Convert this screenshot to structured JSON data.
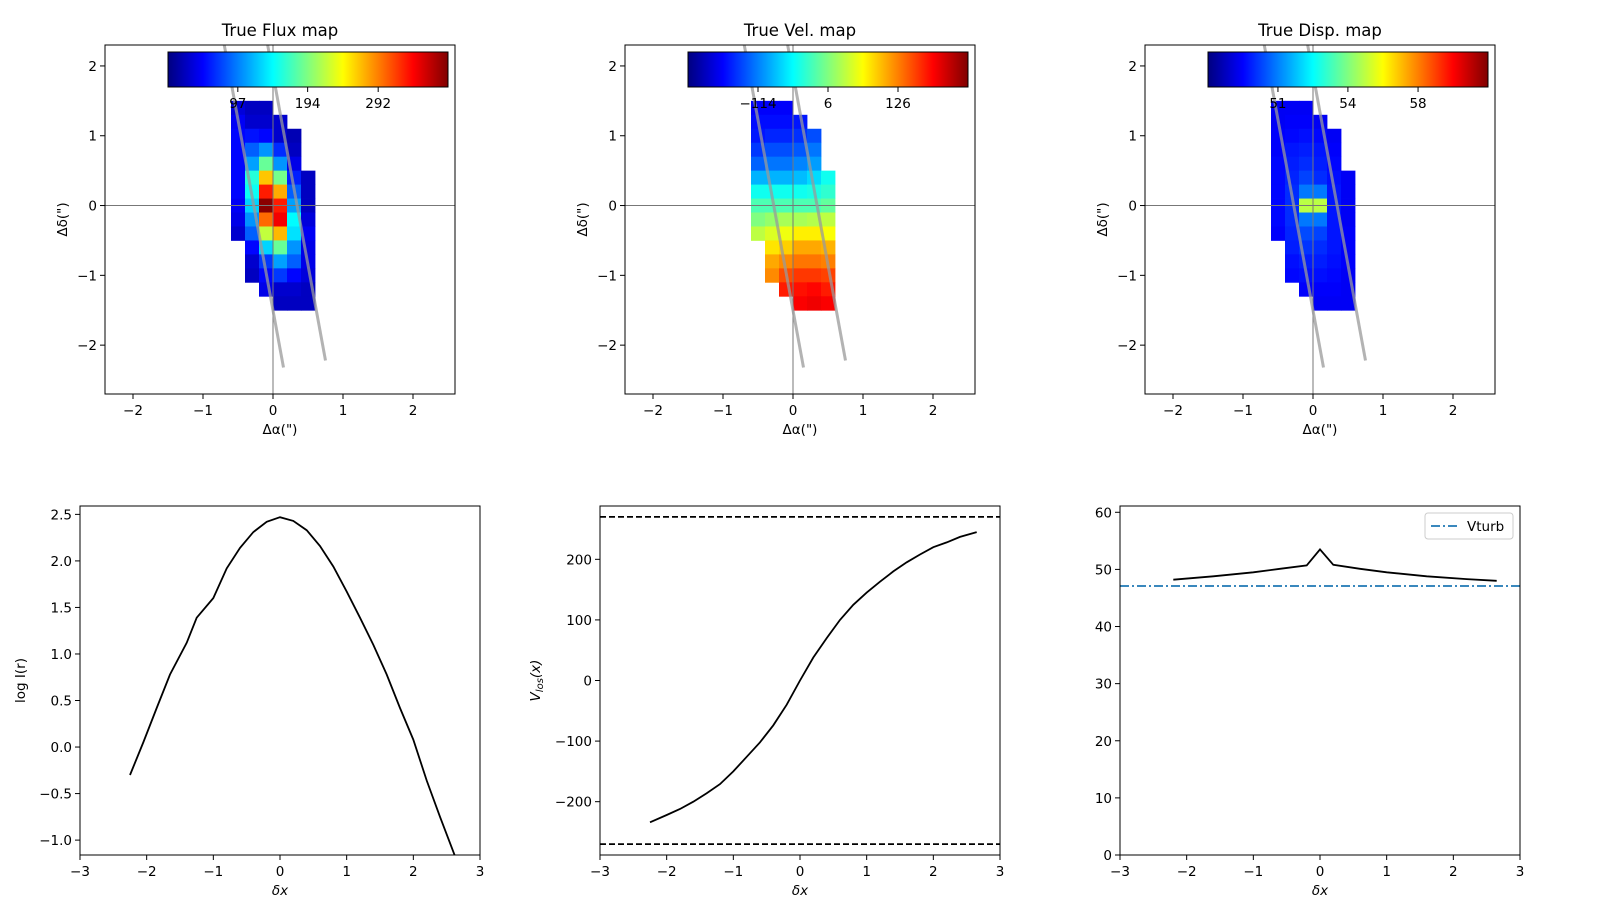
{
  "chart_data": [
    {
      "type": "heatmap",
      "title": "True Flux map",
      "xlabel": "Δα(\")",
      "ylabel": "Δδ(\")",
      "xlim": [
        -2.4,
        2.6
      ],
      "ylim": [
        -2.7,
        2.3
      ],
      "xticks": [
        -2,
        -1,
        0,
        1,
        2
      ],
      "xtick_labels": [
        "−2",
        "−1",
        "0",
        "1",
        "2"
      ],
      "yticks": [
        -2,
        -1,
        0,
        1,
        2
      ],
      "ytick_labels": [
        "−2",
        "−1",
        "0",
        "1",
        "2"
      ],
      "colormap": "jet",
      "clim": [
        0,
        389
      ],
      "colorbar_ticks": [
        97,
        194,
        292
      ],
      "colorbar_tick_labels": [
        "97",
        "194",
        "292"
      ],
      "cell_size": 0.2,
      "x_centers": [
        -0.5,
        -0.3,
        -0.1,
        0.1,
        0.3,
        0.5
      ],
      "y_centers": [
        1.4,
        1.2,
        1.0,
        0.8,
        0.6,
        0.4,
        0.2,
        0.0,
        -0.2,
        -0.4,
        -0.6,
        -0.8,
        -1.0,
        -1.2,
        -1.4
      ],
      "values": [
        [
          35,
          25,
          25,
          null,
          null,
          null
        ],
        [
          45,
          30,
          30,
          30,
          null,
          null
        ],
        [
          50,
          55,
          50,
          30,
          20,
          null
        ],
        [
          50,
          85,
          105,
          65,
          25,
          null
        ],
        [
          50,
          110,
          185,
          105,
          40,
          null
        ],
        [
          50,
          160,
          265,
          190,
          60,
          25
        ],
        [
          50,
          150,
          330,
          275,
          85,
          25
        ],
        [
          45,
          130,
          385,
          330,
          110,
          25
        ],
        [
          40,
          105,
          300,
          345,
          145,
          35
        ],
        [
          30,
          85,
          220,
          270,
          135,
          45
        ],
        [
          null,
          50,
          130,
          185,
          105,
          40
        ],
        [
          null,
          30,
          70,
          110,
          85,
          40
        ],
        [
          null,
          25,
          50,
          70,
          50,
          35
        ],
        [
          null,
          null,
          40,
          30,
          30,
          25
        ],
        [
          null,
          null,
          null,
          25,
          25,
          25
        ]
      ],
      "crosshair": [
        0,
        0
      ],
      "slit_lines": [
        [
          [
            -0.7,
            2.32
          ],
          [
            0.15,
            -2.32
          ]
        ],
        [
          [
            -0.08,
            2.32
          ],
          [
            0.75,
            -2.22
          ]
        ]
      ]
    },
    {
      "type": "heatmap",
      "title": "True Vel. map",
      "xlabel": "Δα(\")",
      "ylabel": "Δδ(\")",
      "xlim": [
        -2.4,
        2.6
      ],
      "ylim": [
        -2.7,
        2.3
      ],
      "xticks": [
        -2,
        -1,
        0,
        1,
        2
      ],
      "xtick_labels": [
        "−2",
        "−1",
        "0",
        "1",
        "2"
      ],
      "yticks": [
        -2,
        -1,
        0,
        1,
        2
      ],
      "ytick_labels": [
        "−2",
        "−1",
        "0",
        "1",
        "2"
      ],
      "colormap": "jet",
      "clim": [
        -234,
        246
      ],
      "colorbar_ticks": [
        -114,
        6,
        126
      ],
      "colorbar_tick_labels": [
        "−114",
        "6",
        "126"
      ],
      "cell_size": 0.2,
      "x_centers": [
        -0.5,
        -0.3,
        -0.1,
        0.1,
        0.3,
        0.5
      ],
      "y_centers": [
        1.4,
        1.2,
        1.0,
        0.8,
        0.6,
        0.4,
        0.2,
        0.0,
        -0.2,
        -0.4,
        -0.6,
        -0.8,
        -1.0,
        -1.2,
        -1.4
      ],
      "values": [
        [
          -176,
          -176,
          -176,
          null,
          null,
          null
        ],
        [
          -169,
          -169,
          -169,
          -164,
          null,
          null
        ],
        [
          -164,
          -157,
          -157,
          -152,
          -138,
          null
        ],
        [
          -148,
          -138,
          -138,
          -133,
          -119,
          null
        ],
        [
          -128,
          -119,
          -119,
          -112,
          -100,
          null
        ],
        [
          -90,
          -90,
          -90,
          -85,
          -71,
          -47
        ],
        [
          -47,
          -47,
          -47,
          -47,
          -42,
          -32
        ],
        [
          -18,
          -18,
          -18,
          -18,
          -18,
          -8
        ],
        [
          6,
          16,
          25,
          25,
          30,
          35
        ],
        [
          35,
          49,
          59,
          73,
          73,
          64
        ],
        [
          null,
          78,
          88,
          107,
          107,
          102
        ],
        [
          null,
          107,
          121,
          131,
          131,
          126
        ],
        [
          null,
          121,
          150,
          160,
          160,
          155
        ],
        [
          null,
          null,
          174,
          179,
          184,
          174
        ],
        [
          null,
          null,
          null,
          188,
          193,
          188
        ]
      ],
      "crosshair": [
        0,
        0
      ],
      "slit_lines": [
        [
          [
            -0.7,
            2.32
          ],
          [
            0.15,
            -2.32
          ]
        ],
        [
          [
            -0.08,
            2.32
          ],
          [
            0.75,
            -2.22
          ]
        ]
      ]
    },
    {
      "type": "heatmap",
      "title": "True Disp. map",
      "xlabel": "Δα(\")",
      "ylabel": "Δδ(\")",
      "xlim": [
        -2.4,
        2.6
      ],
      "ylim": [
        -2.7,
        2.3
      ],
      "xticks": [
        -2,
        -1,
        0,
        1,
        2
      ],
      "xtick_labels": [
        "−2",
        "−1",
        "0",
        "1",
        "2"
      ],
      "yticks": [
        -2,
        -1,
        0,
        1,
        2
      ],
      "ytick_labels": [
        "−2",
        "−1",
        "0",
        "1",
        "2"
      ],
      "colormap": "jet",
      "clim": [
        47.57,
        60.9
      ],
      "colorbar_ticks": [
        50.9,
        54.23,
        57.57
      ],
      "colorbar_tick_labels": [
        "51",
        "54",
        "58"
      ],
      "cell_size": 0.2,
      "x_centers": [
        -0.5,
        -0.3,
        -0.1,
        0.1,
        0.3,
        0.5
      ],
      "y_centers": [
        1.4,
        1.2,
        1.0,
        0.8,
        0.6,
        0.4,
        0.2,
        0.0,
        -0.2,
        -0.4,
        -0.6,
        -0.8,
        -1.0,
        -1.2,
        -1.4
      ],
      "values": [
        [
          49.1,
          49.1,
          49.1,
          null,
          null,
          null
        ],
        [
          49.1,
          49.2,
          49.2,
          49.1,
          null,
          null
        ],
        [
          49.2,
          49.3,
          49.4,
          49.3,
          49.1,
          null
        ],
        [
          49.2,
          49.5,
          49.6,
          49.5,
          49.2,
          null
        ],
        [
          49.3,
          49.6,
          49.8,
          49.6,
          49.3,
          null
        ],
        [
          49.3,
          49.7,
          50.1,
          49.8,
          49.4,
          49.1
        ],
        [
          49.3,
          49.8,
          50.8,
          50.8,
          49.5,
          49.1
        ],
        [
          49.3,
          49.8,
          55.0,
          55.0,
          49.5,
          49.1
        ],
        [
          49.3,
          49.8,
          50.8,
          50.8,
          49.5,
          49.1
        ],
        [
          49.2,
          49.7,
          50.2,
          50.1,
          49.5,
          49.2
        ],
        [
          null,
          49.6,
          49.9,
          49.8,
          49.5,
          49.2
        ],
        [
          null,
          49.4,
          49.6,
          49.6,
          49.4,
          49.2
        ],
        [
          null,
          49.3,
          49.4,
          49.4,
          49.3,
          49.1
        ],
        [
          null,
          null,
          49.2,
          49.2,
          49.2,
          49.1
        ],
        [
          null,
          null,
          null,
          49.1,
          49.1,
          49.1
        ]
      ],
      "crosshair": [
        0,
        0
      ],
      "slit_lines": [
        [
          [
            -0.7,
            2.32
          ],
          [
            0.15,
            -2.32
          ]
        ],
        [
          [
            -0.08,
            2.32
          ],
          [
            0.75,
            -2.22
          ]
        ]
      ]
    },
    {
      "type": "line",
      "xlabel": "δx",
      "ylabel": "log I(r)",
      "xlim": [
        -3,
        3
      ],
      "ylim": [
        -1.16,
        2.59
      ],
      "xticks": [
        -3,
        -2,
        -1,
        0,
        1,
        2,
        3
      ],
      "xtick_labels": [
        "−3",
        "−2",
        "−1",
        "0",
        "1",
        "2",
        "3"
      ],
      "yticks": [
        -1.0,
        -0.5,
        0.0,
        0.5,
        1.0,
        1.5,
        2.0,
        2.5
      ],
      "ytick_labels": [
        "−1.0",
        "−0.5",
        "0.0",
        "0.5",
        "1.0",
        "1.5",
        "2.0",
        "2.5"
      ],
      "series": [
        {
          "color": "#000000",
          "style": "solid",
          "x": [
            -2.25,
            -2.05,
            -1.85,
            -1.65,
            -1.4,
            -1.25,
            -1.0,
            -0.8,
            -0.6,
            -0.4,
            -0.2,
            0.0,
            0.2,
            0.4,
            0.6,
            0.8,
            1.0,
            1.2,
            1.4,
            1.6,
            1.8,
            2.0,
            2.2,
            2.4,
            2.65
          ],
          "y": [
            -0.3,
            0.05,
            0.42,
            0.78,
            1.12,
            1.39,
            1.6,
            1.92,
            2.14,
            2.31,
            2.42,
            2.47,
            2.43,
            2.33,
            2.16,
            1.94,
            1.67,
            1.39,
            1.1,
            0.78,
            0.42,
            0.08,
            -0.36,
            -0.75,
            -1.22
          ]
        }
      ],
      "hlines": []
    },
    {
      "type": "line",
      "xlabel": "δx",
      "ylabel_main": "V",
      "ylabel_sub": "los",
      "ylabel_tail": "(x)",
      "xlim": [
        -3,
        3
      ],
      "ylim": [
        -288,
        288
      ],
      "xticks": [
        -3,
        -2,
        -1,
        0,
        1,
        2,
        3
      ],
      "xtick_labels": [
        "−3",
        "−2",
        "−1",
        "0",
        "1",
        "2",
        "3"
      ],
      "yticks": [
        -200,
        -100,
        0,
        100,
        200
      ],
      "ytick_labels": [
        "−200",
        "−100",
        "0",
        "100",
        "200"
      ],
      "series": [
        {
          "color": "#000000",
          "style": "solid",
          "x": [
            -2.25,
            -2.0,
            -1.8,
            -1.6,
            -1.4,
            -1.2,
            -1.0,
            -0.8,
            -0.6,
            -0.4,
            -0.2,
            0.0,
            0.2,
            0.4,
            0.6,
            0.8,
            1.0,
            1.2,
            1.4,
            1.6,
            1.8,
            2.0,
            2.2,
            2.4,
            2.65
          ],
          "y": [
            -234,
            -222,
            -212,
            -200,
            -186,
            -171,
            -150,
            -126,
            -102,
            -74,
            -40,
            0,
            38,
            70,
            100,
            125,
            145,
            163,
            180,
            195,
            208,
            220,
            228,
            237,
            245
          ]
        }
      ],
      "hlines": [
        {
          "y": 270,
          "color": "#000000",
          "style": "dashed"
        },
        {
          "y": -270,
          "color": "#000000",
          "style": "dashed"
        }
      ]
    },
    {
      "type": "line",
      "xlabel": "δx",
      "ylabel": "",
      "xlim": [
        -3,
        3
      ],
      "ylim": [
        0,
        61.1
      ],
      "xticks": [
        -3,
        -2,
        -1,
        0,
        1,
        2,
        3
      ],
      "xtick_labels": [
        "−3",
        "−2",
        "−1",
        "0",
        "1",
        "2",
        "3"
      ],
      "yticks": [
        0,
        10,
        20,
        30,
        40,
        50,
        60
      ],
      "ytick_labels": [
        "0",
        "10",
        "20",
        "30",
        "40",
        "50",
        "60"
      ],
      "series": [
        {
          "color": "#000000",
          "style": "solid",
          "x": [
            -2.2,
            -1.6,
            -1.0,
            -0.6,
            -0.2,
            0.0,
            0.2,
            0.6,
            1.0,
            1.6,
            2.2,
            2.65
          ],
          "y": [
            48.2,
            48.8,
            49.5,
            50.1,
            50.7,
            53.5,
            50.8,
            50.1,
            49.5,
            48.8,
            48.3,
            48.0
          ]
        }
      ],
      "hlines": [
        {
          "y": 47.1,
          "color": "#1f77b4",
          "style": "dashdot",
          "name": "Vturb"
        }
      ],
      "legend": {
        "entries": [
          "Vturb"
        ],
        "placement": "top-right"
      }
    }
  ]
}
